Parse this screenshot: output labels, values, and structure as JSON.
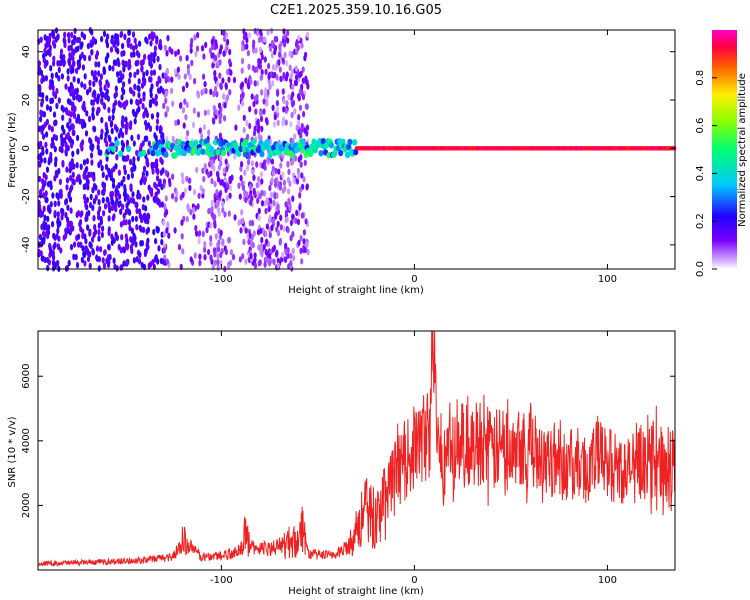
{
  "figure_title": "C2E1.2025.359.10.16.G05",
  "colors": {
    "snr_line": "#ee2222",
    "spec_point": "#7a00ff"
  },
  "chart_data": [
    {
      "type": "heatmap",
      "title": "C2E1.2025.359.10.16.G05",
      "xlabel": "Height of straight line (km)",
      "ylabel": "Frequency (Hz)",
      "xlim": [
        -195,
        135
      ],
      "ylim": [
        -50,
        49
      ],
      "x_ticks": [
        -100,
        0,
        100
      ],
      "y_ticks": [
        -40,
        -20,
        0,
        20,
        40
      ],
      "colorbar": {
        "label": "Normalized spectral amplitude",
        "range": [
          0.0,
          1.0
        ],
        "ticks": [
          0.0,
          0.2,
          0.4,
          0.6,
          0.8
        ]
      },
      "description_points": {
        "noise_region_x": [
          -195,
          -55
        ],
        "signal_ridge_frequency_hz": 0,
        "strong_ridge_start_x": -30
      }
    },
    {
      "type": "line",
      "xlabel": "Height of straight line (km)",
      "ylabel": "SNR (10 * v/v)",
      "xlim": [
        -195,
        135
      ],
      "ylim": [
        0,
        7400
      ],
      "x_ticks": [
        -100,
        0,
        100
      ],
      "y_ticks": [
        2000,
        4000,
        6000
      ],
      "series": [
        {
          "name": "SNR",
          "x": [
            -195,
            -180,
            -160,
            -140,
            -125,
            -120,
            -110,
            -100,
            -90,
            -88,
            -85,
            -75,
            -60,
            -58,
            -55,
            -45,
            -40,
            -35,
            -30,
            -25,
            -20,
            -15,
            -10,
            -5,
            0,
            5,
            8,
            10,
            12,
            15,
            20,
            25,
            30,
            35,
            40,
            45,
            50,
            55,
            60,
            65,
            70,
            75,
            80,
            85,
            90,
            95,
            100,
            105,
            110,
            115,
            120,
            125,
            130,
            135
          ],
          "values": [
            200,
            220,
            250,
            300,
            420,
            900,
            400,
            450,
            600,
            1200,
            700,
            650,
            950,
            1400,
            500,
            450,
            500,
            700,
            1300,
            1800,
            1600,
            2300,
            3000,
            3300,
            3800,
            4100,
            4300,
            7400,
            3900,
            3500,
            3700,
            3900,
            3800,
            4100,
            3600,
            3800,
            4200,
            4000,
            3700,
            3800,
            3500,
            3400,
            3200,
            3300,
            3100,
            3500,
            3300,
            3200,
            3000,
            3400,
            3300,
            3500,
            3200,
            3300
          ]
        }
      ]
    }
  ]
}
